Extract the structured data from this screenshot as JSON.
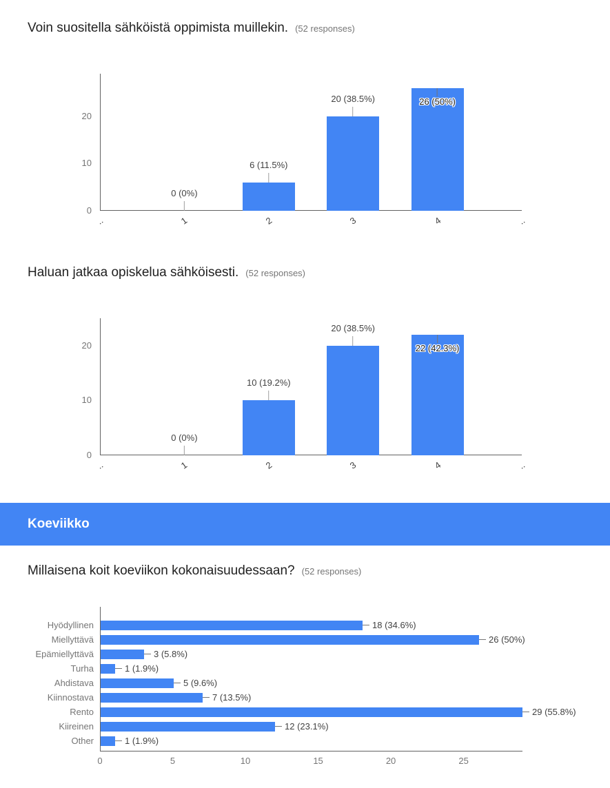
{
  "page": {
    "background": "#ffffff",
    "accent_blue": "#4285f4"
  },
  "questions": [
    {
      "title": "Voin suositella sähköistä oppimista muillekin.",
      "responses_label": "(52 responses)"
    },
    {
      "title": "Haluan jatkaa opiskelua sähköisesti.",
      "responses_label": "(52 responses)"
    },
    {
      "title": "Millaisena koit koeviikon kokonaisuudessaan?",
      "responses_label": "(52 responses)"
    }
  ],
  "section_header": {
    "label": "Koeviikko",
    "background": "#4285f4",
    "text_color": "#ffffff"
  },
  "chart_data": [
    {
      "type": "bar",
      "orientation": "vertical",
      "title": "Voin suositella sähköistä oppimista muillekin.",
      "responses": 52,
      "categories": [
        "1",
        "2",
        "3",
        "4"
      ],
      "values": [
        0,
        6,
        20,
        26
      ],
      "labels": [
        "0 (0%)",
        "6 (11.5%)",
        "20 (38.5%)",
        "26 (50%)"
      ],
      "yticks": [
        0,
        10,
        20
      ],
      "ylim": [
        0,
        29
      ],
      "edge_label": "..",
      "bar_color": "#4285f4",
      "grid": false,
      "legend": "none"
    },
    {
      "type": "bar",
      "orientation": "vertical",
      "title": "Haluan jatkaa opiskelua sähköisesti.",
      "responses": 52,
      "categories": [
        "1",
        "2",
        "3",
        "4"
      ],
      "values": [
        0,
        10,
        20,
        22
      ],
      "labels": [
        "0 (0%)",
        "10 (19.2%)",
        "20 (38.5%)",
        "22 (42.3%)"
      ],
      "yticks": [
        0,
        10,
        20
      ],
      "ylim": [
        0,
        25
      ],
      "edge_label": "..",
      "bar_color": "#4285f4",
      "grid": false,
      "legend": "none"
    },
    {
      "type": "bar",
      "orientation": "horizontal",
      "title": "Millaisena koit koeviikon kokonaisuudessaan?",
      "responses": 52,
      "categories": [
        "Hyödyllinen",
        "Miellyttävä",
        "Epämiellyttävä",
        "Turha",
        "Ahdistava",
        "Kiinnostava",
        "Rento",
        "Kiireinen",
        "Other"
      ],
      "values": [
        18,
        26,
        3,
        1,
        5,
        7,
        29,
        12,
        1
      ],
      "labels": [
        "18 (34.6%)",
        "26 (50%)",
        "3 (5.8%)",
        "1 (1.9%)",
        "5 (9.6%)",
        "7 (13.5%)",
        "29 (55.8%)",
        "12 (23.1%)",
        "1 (1.9%)"
      ],
      "xticks": [
        0,
        5,
        10,
        15,
        20,
        25
      ],
      "xlim": [
        0,
        29
      ],
      "bar_color": "#4285f4",
      "grid": false,
      "legend": "none"
    }
  ]
}
